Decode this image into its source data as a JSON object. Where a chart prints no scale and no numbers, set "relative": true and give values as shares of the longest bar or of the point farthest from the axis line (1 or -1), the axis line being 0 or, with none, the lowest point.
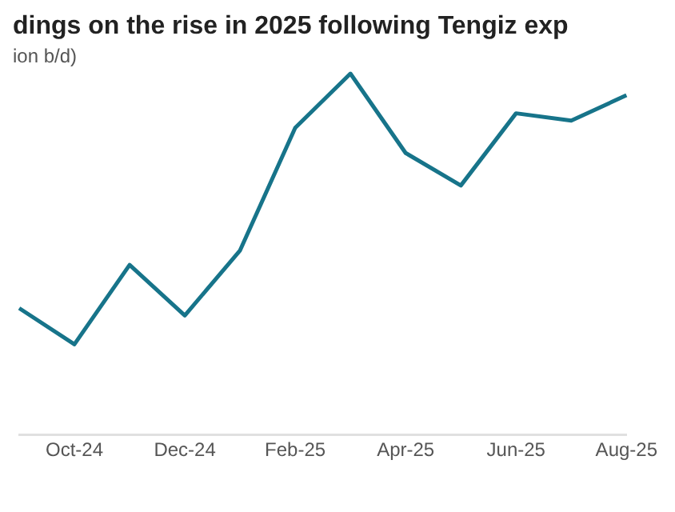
{
  "chart_data": {
    "type": "line",
    "title": "dings on the rise in 2025 following Tengiz exp",
    "subtitle": "ion b/d)",
    "relative": true,
    "grid": false,
    "legend": false,
    "marker": "none",
    "line_style": "solid",
    "categories": [
      null,
      "Oct-24",
      null,
      "Dec-24",
      null,
      "Feb-25",
      null,
      "Apr-25",
      null,
      "Jun-25",
      null,
      "Aug-25"
    ],
    "series": [
      {
        "color": "#17748a",
        "values": [
          0.35,
          0.25,
          0.47,
          0.33,
          0.51,
          0.85,
          1,
          0.78,
          0.69,
          0.89,
          0.87,
          0.94
        ]
      }
    ]
  }
}
